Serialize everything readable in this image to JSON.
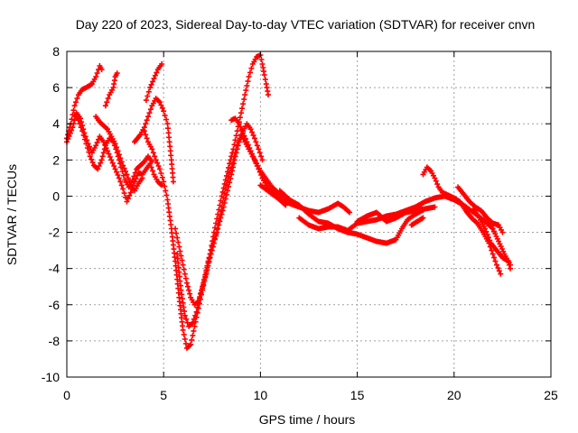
{
  "chart_data": {
    "type": "scatter",
    "title": "Day 220 of 2023, Sidereal Day-to-day VTEC variation (SDTVAR) for receiver cnvn",
    "xlabel": "GPS time / hours",
    "ylabel": "SDTVAR / TECUs",
    "xlim": [
      0,
      25
    ],
    "ylim": [
      -10,
      8
    ],
    "xticks": [
      0,
      5,
      10,
      15,
      20,
      25
    ],
    "yticks": [
      -10,
      -8,
      -6,
      -4,
      -2,
      0,
      2,
      4,
      6,
      8
    ],
    "grid": true,
    "marker": "+",
    "color": "#ff0000",
    "series": [
      {
        "name": "track-1",
        "points": [
          [
            0.0,
            3.2
          ],
          [
            0.2,
            4.0
          ],
          [
            0.4,
            5.0
          ],
          [
            0.6,
            5.6
          ],
          [
            0.8,
            5.9
          ],
          [
            1.0,
            6.0
          ],
          [
            1.3,
            6.2
          ],
          [
            1.5,
            6.6
          ],
          [
            1.7,
            7.2
          ],
          [
            1.8,
            7.0
          ]
        ]
      },
      {
        "name": "track-2",
        "points": [
          [
            0.0,
            3.0
          ],
          [
            0.3,
            3.8
          ],
          [
            0.5,
            4.6
          ],
          [
            0.7,
            4.3
          ],
          [
            0.9,
            3.5
          ],
          [
            1.1,
            2.9
          ],
          [
            1.3,
            2.4
          ],
          [
            1.5,
            2.8
          ],
          [
            1.7,
            3.3
          ],
          [
            1.9,
            3.0
          ],
          [
            2.1,
            2.5
          ],
          [
            2.3,
            2.0
          ],
          [
            2.5,
            1.5
          ],
          [
            2.7,
            1.0
          ],
          [
            2.9,
            0.4
          ],
          [
            3.1,
            -0.3
          ],
          [
            3.3,
            0.2
          ],
          [
            3.5,
            0.8
          ],
          [
            3.7,
            1.3
          ],
          [
            3.9,
            1.2
          ],
          [
            4.1,
            1.5
          ],
          [
            4.3,
            1.8
          ],
          [
            4.5,
            1.2
          ],
          [
            4.7,
            0.8
          ],
          [
            4.9,
            0.6
          ]
        ]
      },
      {
        "name": "track-3",
        "points": [
          [
            0.4,
            4.5
          ],
          [
            0.6,
            4.2
          ],
          [
            0.8,
            3.6
          ],
          [
            1.0,
            2.9
          ],
          [
            1.2,
            2.2
          ],
          [
            1.4,
            1.7
          ],
          [
            1.6,
            1.5
          ],
          [
            1.8,
            2.0
          ],
          [
            2.0,
            2.8
          ],
          [
            2.2,
            3.2
          ],
          [
            2.4,
            3.0
          ],
          [
            2.6,
            2.4
          ],
          [
            2.8,
            1.6
          ],
          [
            3.0,
            0.9
          ],
          [
            3.2,
            0.5
          ],
          [
            3.4,
            0.9
          ],
          [
            3.6,
            1.5
          ],
          [
            3.8,
            1.7
          ],
          [
            4.0,
            1.9
          ],
          [
            4.2,
            2.2
          ],
          [
            4.4,
            1.9
          ]
        ]
      },
      {
        "name": "track-4",
        "points": [
          [
            1.5,
            4.4
          ],
          [
            1.7,
            4.1
          ],
          [
            1.9,
            3.9
          ],
          [
            2.1,
            3.7
          ],
          [
            2.3,
            3.3
          ],
          [
            2.5,
            2.9
          ],
          [
            2.7,
            2.3
          ],
          [
            2.9,
            1.7
          ],
          [
            3.1,
            1.2
          ],
          [
            3.3,
            0.6
          ],
          [
            3.5,
            0.3
          ],
          [
            3.7,
            0.7
          ],
          [
            3.9,
            1.0
          ]
        ]
      },
      {
        "name": "track-5",
        "points": [
          [
            2.0,
            5.0
          ],
          [
            2.2,
            5.6
          ],
          [
            2.4,
            6.0
          ],
          [
            2.5,
            6.6
          ],
          [
            2.6,
            6.8
          ]
        ]
      },
      {
        "name": "track-6",
        "points": [
          [
            3.5,
            3.0
          ],
          [
            3.8,
            3.4
          ],
          [
            4.0,
            3.8
          ],
          [
            4.2,
            4.4
          ],
          [
            4.4,
            5.0
          ],
          [
            4.6,
            5.4
          ],
          [
            4.8,
            5.2
          ],
          [
            5.0,
            4.7
          ],
          [
            5.2,
            4.0
          ],
          [
            5.3,
            3.0
          ],
          [
            5.4,
            2.0
          ],
          [
            5.5,
            0.8
          ]
        ]
      },
      {
        "name": "track-7",
        "points": [
          [
            4.1,
            5.3
          ],
          [
            4.3,
            6.0
          ],
          [
            4.5,
            6.5
          ],
          [
            4.7,
            7.0
          ],
          [
            4.9,
            7.3
          ]
        ]
      },
      {
        "name": "track-8",
        "points": [
          [
            4.0,
            3.6
          ],
          [
            4.2,
            3.0
          ],
          [
            4.4,
            2.6
          ],
          [
            4.6,
            2.0
          ],
          [
            4.8,
            1.5
          ],
          [
            5.0,
            0.8
          ],
          [
            5.2,
            -0.2
          ],
          [
            5.4,
            -1.8
          ],
          [
            5.6,
            -3.6
          ],
          [
            5.8,
            -5.6
          ],
          [
            6.0,
            -7.4
          ],
          [
            6.2,
            -8.4
          ],
          [
            6.4,
            -8.2
          ],
          [
            6.6,
            -7.2
          ],
          [
            6.8,
            -6.2
          ],
          [
            7.0,
            -5.2
          ],
          [
            7.2,
            -4.2
          ],
          [
            7.4,
            -3.2
          ],
          [
            7.6,
            -2.0
          ],
          [
            7.8,
            -1.0
          ],
          [
            8.0,
            0.0
          ],
          [
            8.2,
            0.9
          ],
          [
            8.4,
            1.8
          ],
          [
            8.6,
            2.6
          ],
          [
            8.8,
            3.6
          ],
          [
            9.0,
            4.6
          ],
          [
            9.2,
            5.6
          ],
          [
            9.4,
            6.6
          ],
          [
            9.6,
            7.3
          ],
          [
            9.8,
            7.7
          ],
          [
            10.0,
            7.8
          ],
          [
            10.1,
            7.3
          ],
          [
            10.2,
            6.7
          ],
          [
            10.3,
            6.2
          ],
          [
            10.4,
            5.6
          ]
        ]
      },
      {
        "name": "track-9",
        "points": [
          [
            5.6,
            -1.8
          ],
          [
            5.8,
            -2.8
          ],
          [
            6.0,
            -3.8
          ],
          [
            6.2,
            -4.8
          ],
          [
            6.4,
            -5.6
          ],
          [
            6.6,
            -6.0
          ],
          [
            6.8,
            -5.8
          ],
          [
            7.0,
            -5.1
          ],
          [
            7.2,
            -4.3
          ],
          [
            7.4,
            -3.4
          ],
          [
            7.6,
            -2.6
          ],
          [
            7.8,
            -1.6
          ],
          [
            8.0,
            -0.6
          ],
          [
            8.2,
            0.4
          ],
          [
            8.4,
            1.3
          ],
          [
            8.6,
            2.0
          ],
          [
            8.8,
            2.8
          ],
          [
            9.0,
            3.4
          ],
          [
            9.2,
            3.0
          ],
          [
            9.4,
            2.6
          ],
          [
            9.6,
            2.2
          ],
          [
            9.8,
            1.8
          ],
          [
            10.0,
            1.4
          ],
          [
            10.2,
            1.1
          ],
          [
            10.4,
            0.8
          ],
          [
            10.6,
            0.5
          ],
          [
            10.8,
            0.3
          ],
          [
            11.0,
            0.1
          ],
          [
            11.2,
            0.0
          ],
          [
            11.4,
            -0.2
          ]
        ]
      },
      {
        "name": "track-10",
        "points": [
          [
            5.7,
            -3.2
          ],
          [
            5.9,
            -5.2
          ],
          [
            6.1,
            -6.6
          ],
          [
            6.3,
            -7.2
          ],
          [
            6.5,
            -7.0
          ],
          [
            6.7,
            -6.4
          ],
          [
            6.9,
            -5.4
          ],
          [
            7.1,
            -4.6
          ],
          [
            7.3,
            -3.6
          ],
          [
            7.5,
            -2.8
          ],
          [
            7.7,
            -2.2
          ],
          [
            7.9,
            -1.4
          ],
          [
            8.1,
            -0.6
          ],
          [
            8.3,
            0.3
          ],
          [
            8.5,
            1.2
          ],
          [
            8.7,
            2.2
          ],
          [
            8.9,
            3.0
          ],
          [
            9.1,
            3.6
          ],
          [
            9.3,
            4.0
          ],
          [
            9.5,
            3.7
          ],
          [
            9.7,
            3.2
          ],
          [
            9.9,
            2.6
          ],
          [
            10.1,
            2.0
          ]
        ]
      },
      {
        "name": "track-11",
        "points": [
          [
            8.5,
            4.2
          ],
          [
            8.7,
            4.3
          ],
          [
            8.9,
            4.0
          ],
          [
            9.1,
            3.5
          ],
          [
            9.3,
            3.0
          ],
          [
            9.5,
            2.5
          ],
          [
            9.7,
            2.0
          ],
          [
            9.9,
            1.5
          ],
          [
            10.1,
            1.0
          ],
          [
            10.3,
            0.6
          ],
          [
            10.5,
            0.3
          ],
          [
            10.7,
            0.1
          ],
          [
            10.9,
            -0.1
          ],
          [
            11.1,
            -0.3
          ],
          [
            11.3,
            -0.5
          ]
        ]
      },
      {
        "name": "track-12",
        "points": [
          [
            10.0,
            0.6
          ],
          [
            10.5,
            0.2
          ],
          [
            11.0,
            -0.2
          ],
          [
            11.5,
            -0.4
          ],
          [
            12.0,
            -0.6
          ],
          [
            12.5,
            -0.8
          ],
          [
            13.0,
            -0.9
          ],
          [
            13.5,
            -0.7
          ],
          [
            14.0,
            -0.4
          ],
          [
            14.3,
            -0.6
          ],
          [
            14.6,
            -0.9
          ]
        ]
      },
      {
        "name": "track-13",
        "points": [
          [
            11.0,
            0.3
          ],
          [
            11.5,
            -0.2
          ],
          [
            12.0,
            -0.5
          ],
          [
            12.5,
            -1.0
          ],
          [
            13.0,
            -1.4
          ],
          [
            13.5,
            -1.5
          ],
          [
            14.0,
            -1.8
          ],
          [
            14.5,
            -2.0
          ],
          [
            15.0,
            -2.1
          ],
          [
            15.5,
            -2.3
          ],
          [
            16.0,
            -2.5
          ],
          [
            16.5,
            -2.6
          ],
          [
            17.0,
            -2.4
          ],
          [
            17.3,
            -1.8
          ],
          [
            17.6,
            -1.3
          ],
          [
            18.0,
            -1.0
          ],
          [
            18.5,
            -0.7
          ],
          [
            19.0,
            -0.6
          ]
        ]
      },
      {
        "name": "track-14",
        "points": [
          [
            12.0,
            -1.2
          ],
          [
            12.5,
            -1.6
          ],
          [
            13.0,
            -1.8
          ],
          [
            13.5,
            -1.7
          ],
          [
            14.0,
            -1.7
          ],
          [
            14.5,
            -1.9
          ],
          [
            15.0,
            -1.5
          ],
          [
            15.5,
            -1.4
          ],
          [
            16.0,
            -1.3
          ],
          [
            16.5,
            -1.1
          ],
          [
            17.0,
            -1.0
          ],
          [
            17.5,
            -0.8
          ],
          [
            18.0,
            -0.6
          ],
          [
            18.5,
            -0.3
          ],
          [
            19.0,
            -0.1
          ],
          [
            19.5,
            0.0
          ],
          [
            20.0,
            -0.2
          ],
          [
            20.5,
            -0.5
          ],
          [
            21.0,
            -0.9
          ],
          [
            21.5,
            -1.3
          ],
          [
            22.0,
            -1.8
          ],
          [
            22.3,
            -2.5
          ],
          [
            22.6,
            -3.2
          ],
          [
            22.9,
            -3.8
          ]
        ]
      },
      {
        "name": "track-15",
        "points": [
          [
            15.0,
            -1.4
          ],
          [
            15.5,
            -1.1
          ],
          [
            16.0,
            -0.9
          ],
          [
            16.5,
            -1.4
          ],
          [
            17.0,
            -1.2
          ],
          [
            17.5,
            -0.9
          ],
          [
            18.0,
            -0.8
          ],
          [
            18.3,
            -0.6
          ]
        ]
      },
      {
        "name": "track-16",
        "points": [
          [
            17.8,
            -1.6
          ],
          [
            18.1,
            -1.4
          ],
          [
            18.4,
            -1.2
          ]
        ]
      },
      {
        "name": "track-17",
        "points": [
          [
            18.4,
            1.2
          ],
          [
            18.6,
            1.6
          ],
          [
            18.8,
            1.4
          ],
          [
            19.0,
            1.0
          ],
          [
            19.2,
            0.5
          ],
          [
            19.4,
            0.2
          ],
          [
            19.6,
            0.1
          ],
          [
            19.8,
            0.0
          ],
          [
            20.0,
            -0.1
          ],
          [
            20.3,
            -0.3
          ],
          [
            20.6,
            -0.8
          ],
          [
            20.9,
            -1.2
          ],
          [
            21.2,
            -1.5
          ],
          [
            21.5,
            -2.0
          ],
          [
            21.8,
            -2.6
          ],
          [
            22.0,
            -3.2
          ],
          [
            22.2,
            -3.8
          ],
          [
            22.4,
            -4.3
          ]
        ]
      },
      {
        "name": "track-18",
        "points": [
          [
            20.2,
            0.5
          ],
          [
            20.5,
            0.1
          ],
          [
            20.8,
            -0.3
          ],
          [
            21.1,
            -0.6
          ],
          [
            21.4,
            -0.8
          ],
          [
            21.7,
            -1.2
          ],
          [
            22.0,
            -1.5
          ],
          [
            22.3,
            -1.6
          ],
          [
            22.5,
            -2.0
          ]
        ]
      },
      {
        "name": "track-19",
        "points": [
          [
            21.0,
            -0.7
          ],
          [
            21.3,
            -1.2
          ],
          [
            21.6,
            -1.8
          ],
          [
            21.9,
            -2.6
          ],
          [
            22.2,
            -3.0
          ],
          [
            22.5,
            -3.4
          ],
          [
            22.8,
            -3.6
          ],
          [
            22.9,
            -4.0
          ]
        ]
      }
    ]
  }
}
